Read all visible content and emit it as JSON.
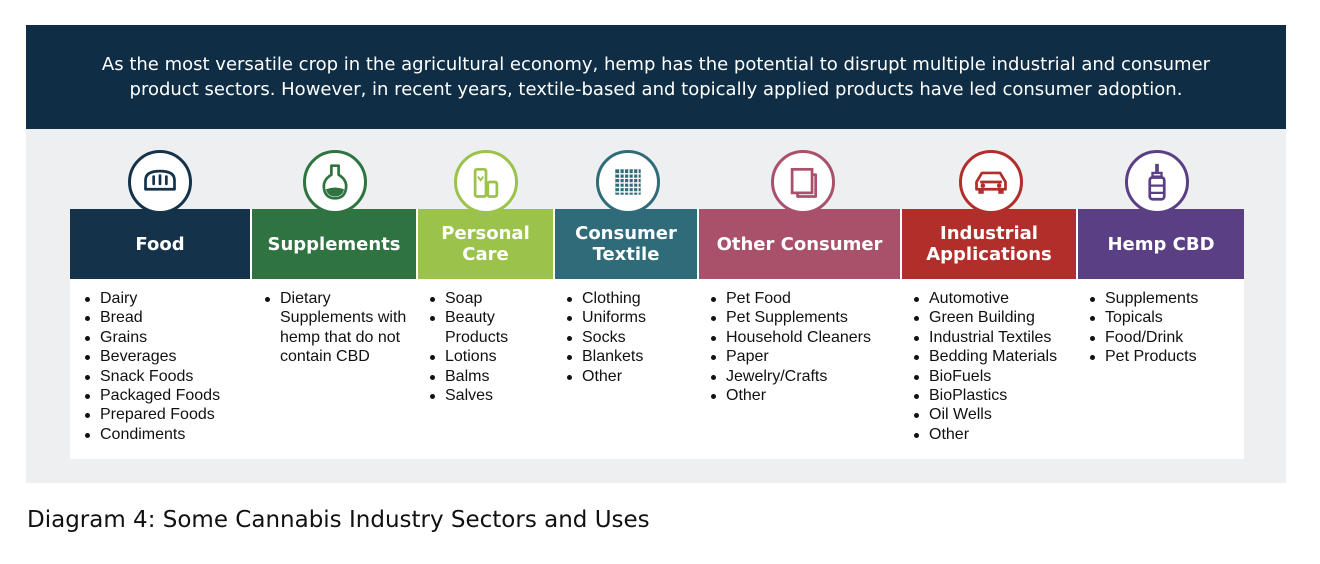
{
  "banner": {
    "line1": "As the most versatile crop in the agricultural economy, hemp has the potential to disrupt multiple industrial and consumer",
    "line2": "product sectors. However, in recent years, textile-based and topically applied products have led consumer adoption."
  },
  "sectors": [
    {
      "label": "Food",
      "color": "#14334b",
      "icon": "bread-icon",
      "items": [
        "Dairy",
        "Bread",
        "Grains",
        "Beverages",
        "Snack Foods",
        "Packaged Foods",
        "Prepared Foods",
        "Condiments"
      ]
    },
    {
      "label": "Supplements",
      "color": "#2f7440",
      "icon": "potion-bottle-icon",
      "items": [
        "Dietary Supplements with hemp that do not contain CBD"
      ]
    },
    {
      "label": "Personal Care",
      "color": "#9bc24a",
      "icon": "lotion-tube-icon",
      "items": [
        "Soap",
        "Beauty Products",
        "Lotions",
        "Balms",
        "Salves"
      ]
    },
    {
      "label": "Consumer Textile",
      "color": "#2f6b79",
      "icon": "fabric-weave-icon",
      "items": [
        "Clothing",
        "Uniforms",
        "Socks",
        "Blankets",
        "Other"
      ]
    },
    {
      "label": "Other Consumer",
      "color": "#a9506a",
      "icon": "box-icon",
      "items": [
        "Pet Food",
        "Pet Supplements",
        "Household Cleaners",
        "Paper",
        "Jewelry/Crafts",
        "Other"
      ]
    },
    {
      "label": "Industrial Applications",
      "color": "#b12e2b",
      "icon": "car-icon",
      "items": [
        "Automotive",
        "Green Building",
        "Industrial Textiles",
        "Bedding Materials",
        "BioFuels",
        "BioPlastics",
        "Oil Wells",
        "Other"
      ]
    },
    {
      "label": "Hemp CBD",
      "color": "#5b3f85",
      "icon": "dropper-bottle-icon",
      "items": [
        "Supplements",
        "Topicals",
        "Food/Drink",
        "Pet Products"
      ]
    }
  ],
  "caption": "Diagram 4: Some Cannabis Industry Sectors and Uses"
}
